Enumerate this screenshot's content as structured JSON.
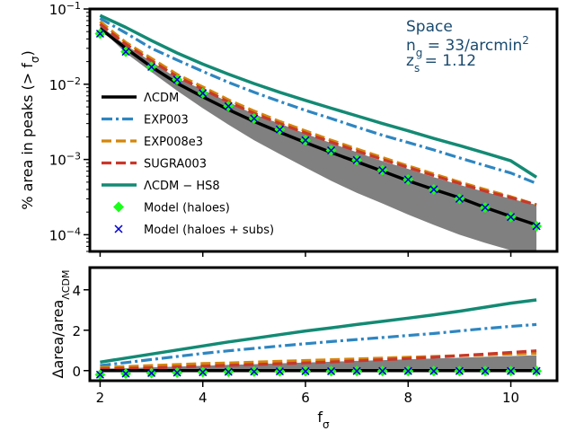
{
  "chart_data": [
    {
      "type": "line",
      "ylabel": "% area in peaks (> f",
      "ylabel_sub": "σ",
      "ylabel_tail": ")",
      "yscale": "log",
      "xlim": [
        1.8,
        10.9
      ],
      "ylim": [
        6e-05,
        0.1
      ],
      "yticks": [
        {
          "value": 0.1,
          "base": "10",
          "exp": "−1"
        },
        {
          "value": 0.01,
          "base": "10",
          "exp": "−2"
        },
        {
          "value": 0.001,
          "base": "10",
          "exp": "−3"
        },
        {
          "value": 0.0001,
          "base": "10",
          "exp": "−4"
        }
      ],
      "annotation": {
        "line1": "Space",
        "line2_pre": "n",
        "line2_sub": "g",
        "line2_mid": " = 33/arcmin",
        "line2_sup": "2",
        "line3_pre": "z",
        "line3_sub": "s",
        "line3_mid": " = 1.12"
      },
      "x": [
        2.0,
        2.5,
        3.0,
        3.5,
        4.0,
        4.5,
        5.0,
        5.5,
        6.0,
        6.5,
        7.0,
        7.5,
        8.0,
        8.5,
        9.0,
        9.5,
        10.0,
        10.5
      ],
      "band": {
        "color": "#808080",
        "lower": [
          0.055,
          0.026,
          0.0145,
          0.0082,
          0.0048,
          0.0029,
          0.0018,
          0.00118,
          0.00078,
          0.00052,
          0.00036,
          0.00026,
          0.000185,
          0.000135,
          0.0001,
          7.8e-05,
          6.2e-05,
          5e-05
        ],
        "upper": [
          0.06,
          0.033,
          0.02,
          0.012,
          0.0085,
          0.0058,
          0.004,
          0.003,
          0.0022,
          0.00165,
          0.00125,
          0.00095,
          0.00075,
          0.00058,
          0.00046,
          0.00037,
          0.0003,
          0.00025
        ]
      },
      "series": [
        {
          "name": "ΛCDM",
          "color": "#000000",
          "style": "solid",
          "width": 3.5,
          "values": [
            0.055,
            0.03,
            0.017,
            0.0103,
            0.0068,
            0.0046,
            0.0032,
            0.0023,
            0.00168,
            0.00124,
            0.00093,
            0.0007,
            0.00052,
            0.0004,
            0.00031,
            0.00023,
            0.000175,
            0.000135
          ]
        },
        {
          "name": "EXP003",
          "color": "#2e86c1",
          "style": "dashdot",
          "width": 3.2,
          "values": [
            0.075,
            0.048,
            0.03,
            0.021,
            0.0148,
            0.0106,
            0.0078,
            0.0059,
            0.0045,
            0.0035,
            0.0027,
            0.0021,
            0.00168,
            0.00134,
            0.00105,
            0.00083,
            0.00066,
            0.00048
          ]
        },
        {
          "name": "EXP008e3",
          "color": "#d4860b",
          "style": "dashed",
          "width": 3.2,
          "values": [
            0.068,
            0.036,
            0.022,
            0.0135,
            0.0092,
            0.0062,
            0.0044,
            0.0032,
            0.0024,
            0.0018,
            0.00138,
            0.00106,
            0.00082,
            0.00064,
            0.0005,
            0.0004,
            0.00032,
            0.00025
          ]
        },
        {
          "name": "SUGRA003",
          "color": "#c8382b",
          "style": "dashed",
          "width": 3.2,
          "values": [
            0.063,
            0.034,
            0.0205,
            0.0126,
            0.0086,
            0.0058,
            0.0041,
            0.003,
            0.00225,
            0.0017,
            0.0013,
            0.001,
            0.00078,
            0.00061,
            0.00048,
            0.00038,
            0.00031,
            0.00025
          ]
        },
        {
          "name": "ΛCDM − HS8",
          "color": "#138a74",
          "style": "solid",
          "width": 3.5,
          "values": [
            0.082,
            0.057,
            0.038,
            0.026,
            0.0185,
            0.0136,
            0.0102,
            0.0078,
            0.0061,
            0.0048,
            0.0038,
            0.003,
            0.0024,
            0.0019,
            0.00153,
            0.00122,
            0.00096,
            0.00058
          ]
        }
      ],
      "markers": [
        {
          "name": "Model (haloes)",
          "color": "#1aff1a",
          "marker": "diamond",
          "values": [
            0.047,
            0.027,
            0.017,
            0.0115,
            0.0076,
            0.0051,
            0.0035,
            0.0025,
            0.0018,
            0.00132,
            0.00098,
            0.00072,
            0.00054,
            0.0004,
            0.0003,
            0.00023,
            0.000172,
            0.00013
          ]
        },
        {
          "name": "Model (haloes + subs)",
          "color": "#0000cc",
          "marker": "x",
          "values": [
            0.047,
            0.027,
            0.017,
            0.0115,
            0.0076,
            0.0051,
            0.0035,
            0.0025,
            0.0018,
            0.00132,
            0.00098,
            0.00072,
            0.00054,
            0.0004,
            0.0003,
            0.00023,
            0.000172,
            0.00013
          ]
        }
      ]
    },
    {
      "type": "line",
      "xlabel": "f",
      "xlabel_sub": "σ",
      "ylabel": "Δarea/area",
      "ylabel_sub": "ΛCDM",
      "xlim": [
        1.8,
        10.9
      ],
      "ylim": [
        -0.5,
        5.1
      ],
      "xticks": [
        2,
        4,
        6,
        8,
        10
      ],
      "yticks": [
        0,
        2,
        4
      ],
      "x": [
        2.0,
        2.5,
        3.0,
        3.5,
        4.0,
        4.5,
        5.0,
        5.5,
        6.0,
        6.5,
        7.0,
        7.5,
        8.0,
        8.5,
        9.0,
        9.5,
        10.0,
        10.5
      ],
      "band": {
        "color": "#808080",
        "lower": [
          0,
          0,
          0,
          0,
          0,
          0,
          0,
          0,
          0,
          0,
          0,
          0,
          0,
          0,
          0,
          0,
          0,
          0
        ],
        "upper": [
          0.1,
          0.12,
          0.16,
          0.2,
          0.24,
          0.28,
          0.32,
          0.36,
          0.4,
          0.44,
          0.48,
          0.52,
          0.56,
          0.6,
          0.64,
          0.68,
          0.72,
          0.76
        ]
      },
      "series": [
        {
          "name": "ΛCDM",
          "color": "#000000",
          "style": "solid",
          "width": 3.5,
          "values": [
            0,
            0,
            0,
            0,
            0,
            0,
            0,
            0,
            0,
            0,
            0,
            0,
            0,
            0,
            0,
            0,
            0,
            0
          ]
        },
        {
          "name": "EXP003",
          "color": "#2e86c1",
          "style": "dashdot",
          "width": 3.2,
          "values": [
            0.25,
            0.4,
            0.55,
            0.7,
            0.85,
            0.98,
            1.1,
            1.22,
            1.33,
            1.44,
            1.54,
            1.64,
            1.74,
            1.84,
            1.96,
            2.08,
            2.19,
            2.28
          ]
        },
        {
          "name": "EXP008e3",
          "color": "#d4860b",
          "style": "dashed",
          "width": 3.2,
          "values": [
            0.15,
            0.2,
            0.25,
            0.3,
            0.35,
            0.38,
            0.42,
            0.46,
            0.5,
            0.54,
            0.58,
            0.62,
            0.66,
            0.7,
            0.74,
            0.78,
            0.82,
            0.86
          ]
        },
        {
          "name": "SUGRA003",
          "color": "#c8382b",
          "style": "dashed",
          "width": 3.2,
          "values": [
            0.08,
            0.11,
            0.14,
            0.18,
            0.22,
            0.26,
            0.3,
            0.34,
            0.38,
            0.43,
            0.48,
            0.54,
            0.6,
            0.66,
            0.74,
            0.82,
            0.9,
            0.98
          ]
        },
        {
          "name": "ΛCDM − HS8",
          "color": "#138a74",
          "style": "solid",
          "width": 3.5,
          "values": [
            0.42,
            0.62,
            0.82,
            1.02,
            1.22,
            1.42,
            1.6,
            1.78,
            1.96,
            2.12,
            2.28,
            2.44,
            2.6,
            2.76,
            2.94,
            3.14,
            3.34,
            3.5
          ]
        }
      ],
      "markers": [
        {
          "name": "Model (haloes)",
          "color": "#1aff1a",
          "marker": "diamond",
          "values": [
            -0.2,
            -0.15,
            -0.12,
            -0.1,
            -0.08,
            -0.06,
            -0.05,
            -0.04,
            -0.03,
            -0.03,
            -0.02,
            -0.02,
            -0.02,
            -0.02,
            -0.02,
            -0.02,
            -0.02,
            -0.02
          ]
        },
        {
          "name": "Model (haloes + subs)",
          "color": "#0000cc",
          "marker": "x",
          "values": [
            -0.2,
            -0.15,
            -0.12,
            -0.1,
            -0.08,
            -0.06,
            -0.05,
            -0.04,
            -0.03,
            -0.03,
            -0.02,
            -0.02,
            -0.02,
            -0.02,
            -0.02,
            -0.02,
            -0.02,
            -0.02
          ]
        }
      ]
    }
  ]
}
